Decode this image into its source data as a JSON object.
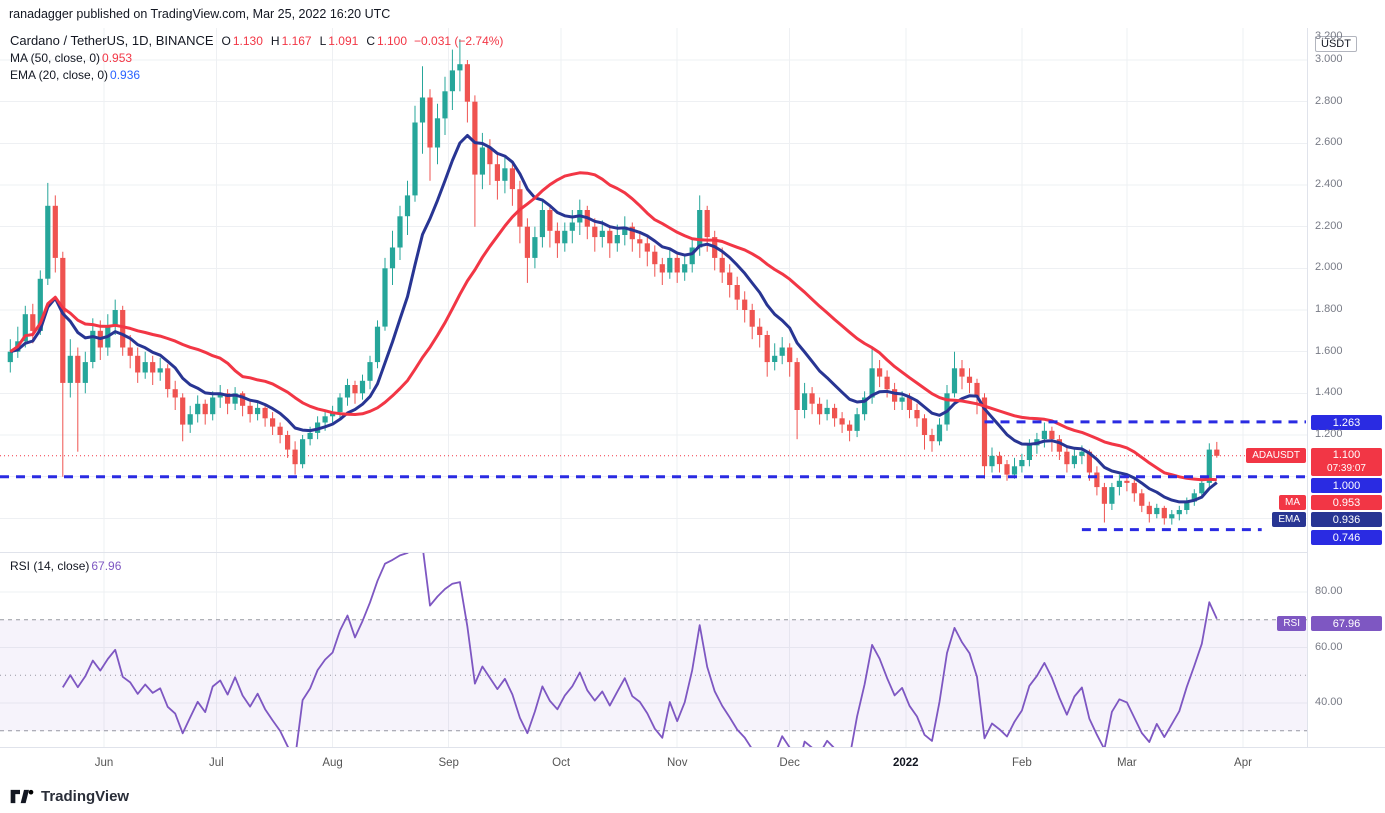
{
  "header": {
    "publisher_line": "ranadagger published on TradingView.com, Mar 25, 2022 16:20 UTC"
  },
  "legend": {
    "symbol": "Cardano / TetherUS, 1D, BINANCE",
    "ohlc": {
      "o_label": "O",
      "o": "1.130",
      "h_label": "H",
      "h": "1.167",
      "l_label": "L",
      "l": "1.091",
      "c_label": "C",
      "c": "1.100",
      "change": "−0.031 (−2.74%)"
    },
    "ma": {
      "label": "MA (50, close, 0)",
      "value": "0.953"
    },
    "ema": {
      "label": "EMA (20, close, 0)",
      "value": "0.936"
    }
  },
  "price_axis": {
    "unit_badge": "USDT",
    "badges": {
      "level_upper": "1.263",
      "last_price": "1.100",
      "countdown": "07:39:07",
      "level_mid": "1.000",
      "ma": "0.953",
      "ema": "0.936",
      "level_lower": "0.746"
    },
    "tags": {
      "symbol": "ADAUSDT",
      "ma": "MA",
      "ema": "EMA",
      "rsi": "RSI"
    }
  },
  "rsi_panel": {
    "legend_label": "RSI (14, close)",
    "legend_value": "67.96",
    "badge": "67.96"
  },
  "footer": {
    "brand": "TradingView"
  },
  "chart_data": {
    "type": "candlestick",
    "symbol": "ADAUSDT",
    "exchange": "BINANCE",
    "interval": "1D",
    "start_date": "2021-05-06",
    "end_date": "2022-03-25",
    "step_days": 2,
    "ohlc_last": {
      "open": 1.13,
      "high": 1.167,
      "low": 1.091,
      "close": 1.1,
      "change": -0.031,
      "change_pct": -2.74
    },
    "last_price": 1.1,
    "price_grid": [
      3.2,
      3.0,
      2.8,
      2.6,
      2.4,
      2.2,
      2.0,
      1.8,
      1.6,
      1.4,
      1.2,
      1.0,
      0.8
    ],
    "price_ticks": [
      {
        "label": "3.200",
        "value": 3.2
      },
      {
        "label": "3.000",
        "value": 3.0
      },
      {
        "label": "2.800",
        "value": 2.8
      },
      {
        "label": "2.600",
        "value": 2.6
      },
      {
        "label": "2.400",
        "value": 2.4
      },
      {
        "label": "2.200",
        "value": 2.2
      },
      {
        "label": "2.000",
        "value": 2.0
      },
      {
        "label": "1.800",
        "value": 1.8
      },
      {
        "label": "1.600",
        "value": 1.6
      },
      {
        "label": "1.400",
        "value": 1.4
      },
      {
        "label": "1.200",
        "value": 1.2
      }
    ],
    "months": [
      {
        "label": "Jun",
        "day": 26
      },
      {
        "label": "Jul",
        "day": 56
      },
      {
        "label": "Aug",
        "day": 87
      },
      {
        "label": "Sep",
        "day": 118
      },
      {
        "label": "Oct",
        "day": 148
      },
      {
        "label": "Nov",
        "day": 179
      },
      {
        "label": "Dec",
        "day": 209
      },
      {
        "label": "2022",
        "day": 240,
        "strong": true
      },
      {
        "label": "Feb",
        "day": 271
      },
      {
        "label": "Mar",
        "day": 299
      },
      {
        "label": "Apr",
        "day": 330
      }
    ],
    "levels": [
      {
        "price": 1.263,
        "from_day": 261,
        "to_day": 400
      },
      {
        "price": 1.0,
        "from_day": -5,
        "to_day": 400
      },
      {
        "price": 0.746,
        "from_day": 287,
        "to_day": 335
      }
    ],
    "indicators": {
      "ma": {
        "type": "SMA",
        "period": 50,
        "source": "close",
        "last": 0.953
      },
      "ema": {
        "type": "EMA",
        "period": 20,
        "source": "close",
        "last": 0.936
      },
      "rsi": {
        "period": 14,
        "source": "close",
        "last": 67.96
      }
    },
    "rsi": {
      "band": [
        70,
        30
      ],
      "mid": 50,
      "axis_ticks": [
        {
          "label": "80.00",
          "value": 80
        },
        {
          "label": "60.00",
          "value": 60
        },
        {
          "label": "40.00",
          "value": 40
        }
      ]
    },
    "colors": {
      "up": "#26a69a",
      "down": "#ef5350",
      "ma": "#f23645",
      "ema": "#283593",
      "level": "#2a2be2",
      "rsi": "#7e57c2",
      "rsi_band": "rgba(126,87,194,0.07)",
      "rsi_band_line": "#9598a1",
      "grid": "#eef0f3",
      "last_price_line": "#f23645"
    },
    "candles": [
      [
        1.55,
        1.66,
        1.5,
        1.6
      ],
      [
        1.6,
        1.72,
        1.57,
        1.65
      ],
      [
        1.65,
        1.82,
        1.62,
        1.78
      ],
      [
        1.78,
        1.83,
        1.64,
        1.7
      ],
      [
        1.7,
        1.99,
        1.68,
        1.95
      ],
      [
        1.95,
        2.41,
        1.92,
        2.3
      ],
      [
        2.3,
        2.35,
        1.98,
        2.05
      ],
      [
        2.05,
        2.08,
        1.0,
        1.45
      ],
      [
        1.45,
        1.66,
        1.38,
        1.58
      ],
      [
        1.58,
        1.62,
        1.12,
        1.45
      ],
      [
        1.45,
        1.6,
        1.4,
        1.55
      ],
      [
        1.55,
        1.76,
        1.52,
        1.7
      ],
      [
        1.7,
        1.75,
        1.56,
        1.62
      ],
      [
        1.62,
        1.78,
        1.58,
        1.72
      ],
      [
        1.72,
        1.85,
        1.68,
        1.8
      ],
      [
        1.8,
        1.82,
        1.58,
        1.62
      ],
      [
        1.62,
        1.68,
        1.52,
        1.58
      ],
      [
        1.58,
        1.62,
        1.45,
        1.5
      ],
      [
        1.5,
        1.6,
        1.47,
        1.55
      ],
      [
        1.55,
        1.58,
        1.44,
        1.5
      ],
      [
        1.5,
        1.57,
        1.46,
        1.52
      ],
      [
        1.52,
        1.54,
        1.38,
        1.42
      ],
      [
        1.42,
        1.46,
        1.32,
        1.38
      ],
      [
        1.38,
        1.4,
        1.17,
        1.25
      ],
      [
        1.25,
        1.34,
        1.21,
        1.3
      ],
      [
        1.3,
        1.39,
        1.26,
        1.35
      ],
      [
        1.35,
        1.37,
        1.25,
        1.3
      ],
      [
        1.3,
        1.41,
        1.27,
        1.38
      ],
      [
        1.38,
        1.44,
        1.33,
        1.4
      ],
      [
        1.4,
        1.42,
        1.3,
        1.35
      ],
      [
        1.35,
        1.43,
        1.32,
        1.4
      ],
      [
        1.4,
        1.41,
        1.29,
        1.34
      ],
      [
        1.34,
        1.37,
        1.26,
        1.3
      ],
      [
        1.3,
        1.36,
        1.27,
        1.33
      ],
      [
        1.33,
        1.34,
        1.24,
        1.28
      ],
      [
        1.28,
        1.31,
        1.2,
        1.24
      ],
      [
        1.24,
        1.26,
        1.16,
        1.2
      ],
      [
        1.2,
        1.22,
        1.09,
        1.13
      ],
      [
        1.13,
        1.17,
        1.01,
        1.06
      ],
      [
        1.06,
        1.2,
        1.04,
        1.18
      ],
      [
        1.18,
        1.24,
        1.15,
        1.21
      ],
      [
        1.21,
        1.29,
        1.18,
        1.26
      ],
      [
        1.26,
        1.32,
        1.22,
        1.29
      ],
      [
        1.29,
        1.34,
        1.25,
        1.31
      ],
      [
        1.31,
        1.4,
        1.28,
        1.38
      ],
      [
        1.38,
        1.47,
        1.34,
        1.44
      ],
      [
        1.44,
        1.46,
        1.35,
        1.4
      ],
      [
        1.4,
        1.49,
        1.37,
        1.46
      ],
      [
        1.46,
        1.58,
        1.42,
        1.55
      ],
      [
        1.55,
        1.75,
        1.52,
        1.72
      ],
      [
        1.72,
        2.05,
        1.7,
        2.0
      ],
      [
        2.0,
        2.18,
        1.92,
        2.1
      ],
      [
        2.1,
        2.3,
        2.04,
        2.25
      ],
      [
        2.25,
        2.42,
        2.16,
        2.35
      ],
      [
        2.35,
        2.78,
        2.32,
        2.7
      ],
      [
        2.7,
        2.97,
        2.55,
        2.82
      ],
      [
        2.82,
        2.86,
        2.42,
        2.58
      ],
      [
        2.58,
        2.79,
        2.5,
        2.72
      ],
      [
        2.72,
        2.92,
        2.64,
        2.85
      ],
      [
        2.85,
        3.05,
        2.76,
        2.95
      ],
      [
        2.95,
        3.1,
        2.85,
        2.98
      ],
      [
        2.98,
        3.0,
        2.7,
        2.8
      ],
      [
        2.8,
        2.83,
        2.2,
        2.45
      ],
      [
        2.45,
        2.65,
        2.38,
        2.58
      ],
      [
        2.58,
        2.62,
        2.4,
        2.5
      ],
      [
        2.5,
        2.55,
        2.33,
        2.42
      ],
      [
        2.42,
        2.54,
        2.36,
        2.48
      ],
      [
        2.48,
        2.5,
        2.3,
        2.38
      ],
      [
        2.38,
        2.42,
        2.12,
        2.2
      ],
      [
        2.2,
        2.24,
        1.93,
        2.05
      ],
      [
        2.05,
        2.2,
        2.0,
        2.15
      ],
      [
        2.15,
        2.32,
        2.1,
        2.28
      ],
      [
        2.28,
        2.3,
        2.1,
        2.18
      ],
      [
        2.18,
        2.22,
        2.05,
        2.12
      ],
      [
        2.12,
        2.22,
        2.08,
        2.18
      ],
      [
        2.18,
        2.28,
        2.12,
        2.22
      ],
      [
        2.22,
        2.33,
        2.16,
        2.28
      ],
      [
        2.28,
        2.3,
        2.14,
        2.2
      ],
      [
        2.2,
        2.24,
        2.08,
        2.15
      ],
      [
        2.15,
        2.23,
        2.1,
        2.18
      ],
      [
        2.18,
        2.2,
        2.05,
        2.12
      ],
      [
        2.12,
        2.21,
        2.08,
        2.16
      ],
      [
        2.16,
        2.25,
        2.11,
        2.2
      ],
      [
        2.2,
        2.22,
        2.08,
        2.14
      ],
      [
        2.14,
        2.18,
        2.05,
        2.12
      ],
      [
        2.12,
        2.15,
        2.01,
        2.08
      ],
      [
        2.08,
        2.11,
        1.96,
        2.02
      ],
      [
        2.02,
        2.05,
        1.92,
        1.98
      ],
      [
        1.98,
        2.09,
        1.95,
        2.05
      ],
      [
        2.05,
        2.08,
        1.93,
        1.98
      ],
      [
        1.98,
        2.07,
        1.94,
        2.02
      ],
      [
        2.02,
        2.14,
        1.98,
        2.1
      ],
      [
        2.1,
        2.35,
        2.06,
        2.28
      ],
      [
        2.28,
        2.3,
        2.08,
        2.15
      ],
      [
        2.15,
        2.18,
        1.99,
        2.05
      ],
      [
        2.05,
        2.1,
        1.93,
        1.98
      ],
      [
        1.98,
        2.02,
        1.86,
        1.92
      ],
      [
        1.92,
        1.96,
        1.8,
        1.85
      ],
      [
        1.85,
        1.89,
        1.74,
        1.8
      ],
      [
        1.8,
        1.83,
        1.66,
        1.72
      ],
      [
        1.72,
        1.76,
        1.62,
        1.68
      ],
      [
        1.68,
        1.7,
        1.48,
        1.55
      ],
      [
        1.55,
        1.64,
        1.51,
        1.58
      ],
      [
        1.58,
        1.67,
        1.54,
        1.62
      ],
      [
        1.62,
        1.64,
        1.48,
        1.55
      ],
      [
        1.55,
        1.57,
        1.18,
        1.32
      ],
      [
        1.32,
        1.45,
        1.28,
        1.4
      ],
      [
        1.4,
        1.43,
        1.3,
        1.35
      ],
      [
        1.35,
        1.38,
        1.25,
        1.3
      ],
      [
        1.3,
        1.37,
        1.27,
        1.33
      ],
      [
        1.33,
        1.35,
        1.24,
        1.28
      ],
      [
        1.28,
        1.31,
        1.21,
        1.25
      ],
      [
        1.25,
        1.27,
        1.17,
        1.22
      ],
      [
        1.22,
        1.33,
        1.19,
        1.3
      ],
      [
        1.3,
        1.41,
        1.27,
        1.38
      ],
      [
        1.38,
        1.62,
        1.35,
        1.52
      ],
      [
        1.52,
        1.56,
        1.43,
        1.48
      ],
      [
        1.48,
        1.51,
        1.38,
        1.42
      ],
      [
        1.42,
        1.45,
        1.32,
        1.36
      ],
      [
        1.36,
        1.41,
        1.32,
        1.38
      ],
      [
        1.38,
        1.4,
        1.28,
        1.32
      ],
      [
        1.32,
        1.35,
        1.24,
        1.28
      ],
      [
        1.28,
        1.3,
        1.13,
        1.2
      ],
      [
        1.2,
        1.23,
        1.12,
        1.17
      ],
      [
        1.17,
        1.28,
        1.15,
        1.25
      ],
      [
        1.25,
        1.44,
        1.22,
        1.4
      ],
      [
        1.4,
        1.6,
        1.38,
        1.52
      ],
      [
        1.52,
        1.56,
        1.42,
        1.48
      ],
      [
        1.48,
        1.52,
        1.4,
        1.45
      ],
      [
        1.45,
        1.47,
        1.3,
        1.38
      ],
      [
        1.38,
        1.4,
        0.99,
        1.05
      ],
      [
        1.05,
        1.14,
        1.02,
        1.1
      ],
      [
        1.1,
        1.12,
        1.02,
        1.06
      ],
      [
        1.06,
        1.08,
        0.98,
        1.01
      ],
      [
        1.01,
        1.09,
        0.99,
        1.05
      ],
      [
        1.05,
        1.11,
        1.02,
        1.08
      ],
      [
        1.08,
        1.18,
        1.05,
        1.15
      ],
      [
        1.15,
        1.21,
        1.11,
        1.18
      ],
      [
        1.18,
        1.26,
        1.14,
        1.22
      ],
      [
        1.22,
        1.24,
        1.12,
        1.18
      ],
      [
        1.18,
        1.2,
        1.08,
        1.12
      ],
      [
        1.12,
        1.14,
        1.02,
        1.06
      ],
      [
        1.06,
        1.13,
        1.04,
        1.1
      ],
      [
        1.1,
        1.15,
        1.06,
        1.12
      ],
      [
        1.12,
        1.13,
        0.98,
        1.02
      ],
      [
        1.02,
        1.05,
        0.91,
        0.95
      ],
      [
        0.95,
        0.97,
        0.78,
        0.87
      ],
      [
        0.87,
        0.97,
        0.84,
        0.95
      ],
      [
        0.95,
        1.01,
        0.91,
        0.98
      ],
      [
        0.98,
        1.0,
        0.93,
        0.97
      ],
      [
        0.97,
        0.99,
        0.88,
        0.92
      ],
      [
        0.92,
        0.94,
        0.83,
        0.86
      ],
      [
        0.86,
        0.88,
        0.78,
        0.82
      ],
      [
        0.82,
        0.87,
        0.8,
        0.85
      ],
      [
        0.85,
        0.86,
        0.77,
        0.8
      ],
      [
        0.8,
        0.84,
        0.77,
        0.82
      ],
      [
        0.82,
        0.86,
        0.79,
        0.84
      ],
      [
        0.84,
        0.9,
        0.82,
        0.88
      ],
      [
        0.88,
        0.94,
        0.86,
        0.92
      ],
      [
        0.92,
        0.99,
        0.9,
        0.97
      ],
      [
        0.97,
        1.16,
        0.95,
        1.13
      ],
      [
        1.13,
        1.167,
        1.091,
        1.1
      ]
    ]
  }
}
